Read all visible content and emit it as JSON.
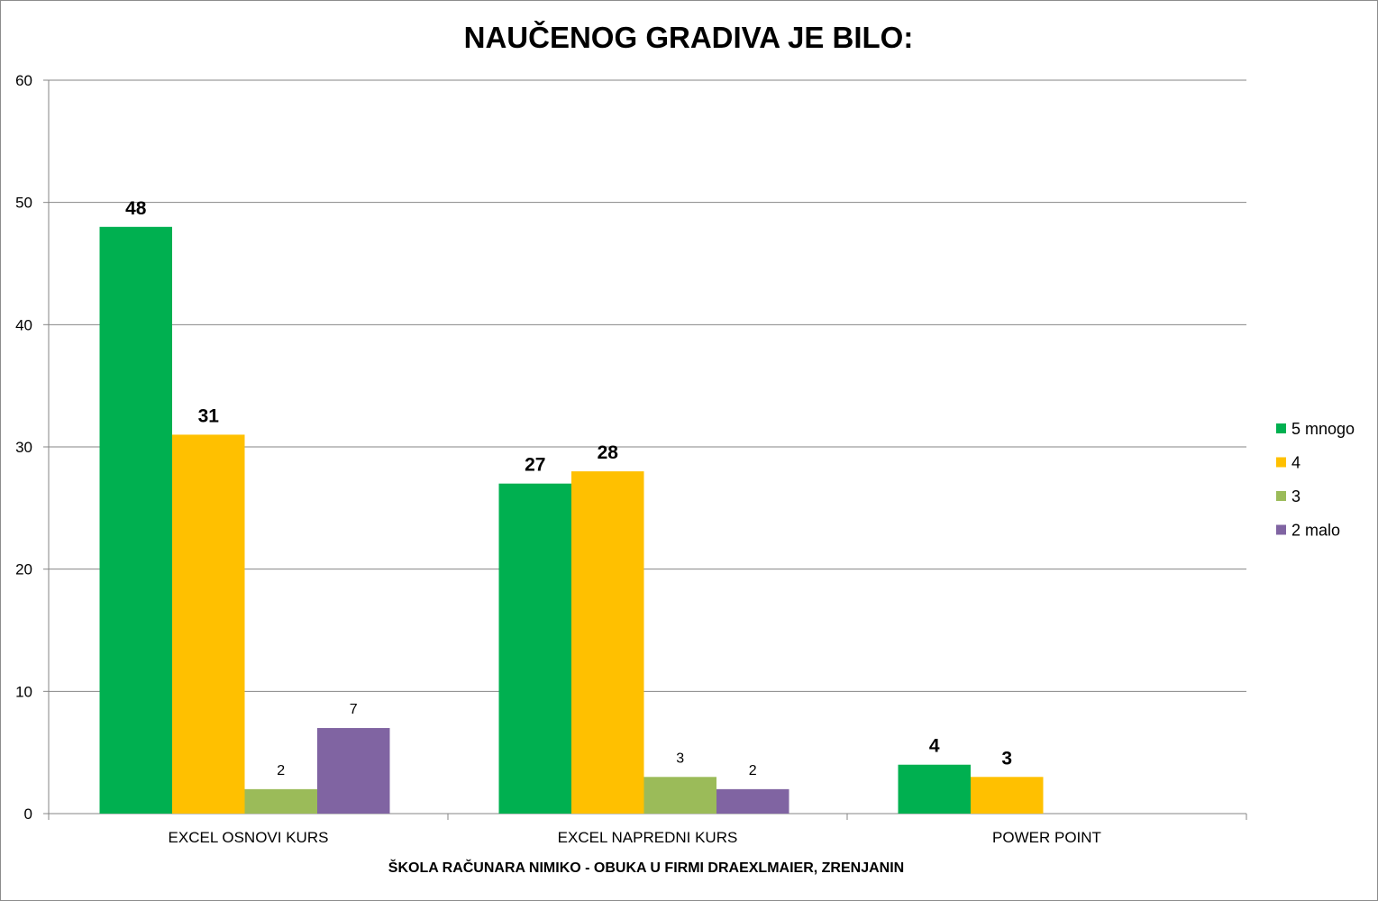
{
  "chart_data": {
    "type": "bar",
    "title": "NAUČENOG GRADIVA JE BILO:",
    "xlabel": "ŠKOLA RAČUNARA NIMIKO - OBUKA U FIRMI DRAEXLMAIER, ZRENJANIN",
    "ylabel": "",
    "ylim": [
      0,
      60
    ],
    "yticks": [
      0,
      10,
      20,
      30,
      40,
      50,
      60
    ],
    "grid": true,
    "legend_position": "right",
    "categories": [
      "EXCEL OSNOVI KURS",
      "EXCEL NAPREDNI KURS",
      "POWER POINT"
    ],
    "series": [
      {
        "name": "5 mnogo",
        "color": "#00B050",
        "values": [
          48,
          27,
          4
        ],
        "label_style": "bold"
      },
      {
        "name": "4",
        "color": "#FFC000",
        "values": [
          31,
          28,
          3
        ],
        "label_style": "bold"
      },
      {
        "name": "3",
        "color": "#9BBB59",
        "values": [
          2,
          3,
          null
        ],
        "label_style": "normal"
      },
      {
        "name": "2 malo",
        "color": "#8064A2",
        "values": [
          7,
          2,
          null
        ],
        "label_style": "normal"
      }
    ]
  }
}
